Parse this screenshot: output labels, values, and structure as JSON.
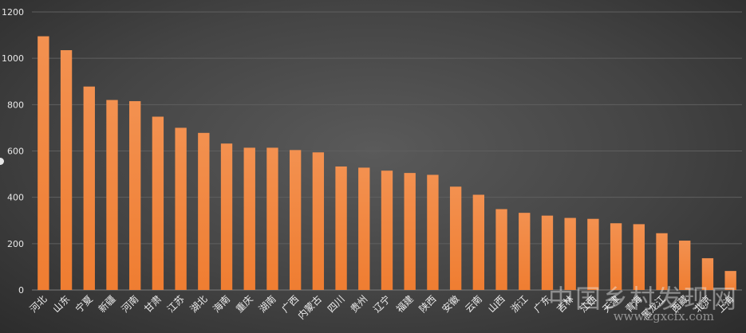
{
  "chart_data": {
    "type": "bar",
    "categories": [
      "河北",
      "山东",
      "宁夏",
      "新疆",
      "河南",
      "甘肃",
      "江苏",
      "湖北",
      "海南",
      "重庆",
      "湖南",
      "广西",
      "内蒙古",
      "四川",
      "贵州",
      "辽宁",
      "福建",
      "陕西",
      "安徽",
      "云南",
      "山西",
      "浙江",
      "广东",
      "吉林",
      "江西",
      "天津",
      "青海",
      "黑龙江",
      "西藏",
      "北京",
      "上海"
    ],
    "values": [
      1095,
      1035,
      878,
      820,
      815,
      748,
      700,
      678,
      632,
      614,
      614,
      604,
      594,
      533,
      528,
      515,
      505,
      497,
      446,
      411,
      349,
      333,
      321,
      311,
      307,
      288,
      284,
      245,
      213,
      137,
      82
    ],
    "ylim": [
      0,
      1200
    ],
    "yticks": [
      "0",
      "200",
      "400",
      "600",
      "800",
      "1000",
      "1200"
    ],
    "grid": true,
    "bar_color": "#ef7d31",
    "bar_color_top": "#f39150"
  },
  "watermark": {
    "text": "中国乡村发现网",
    "url": "www.zgxcfx.com"
  }
}
